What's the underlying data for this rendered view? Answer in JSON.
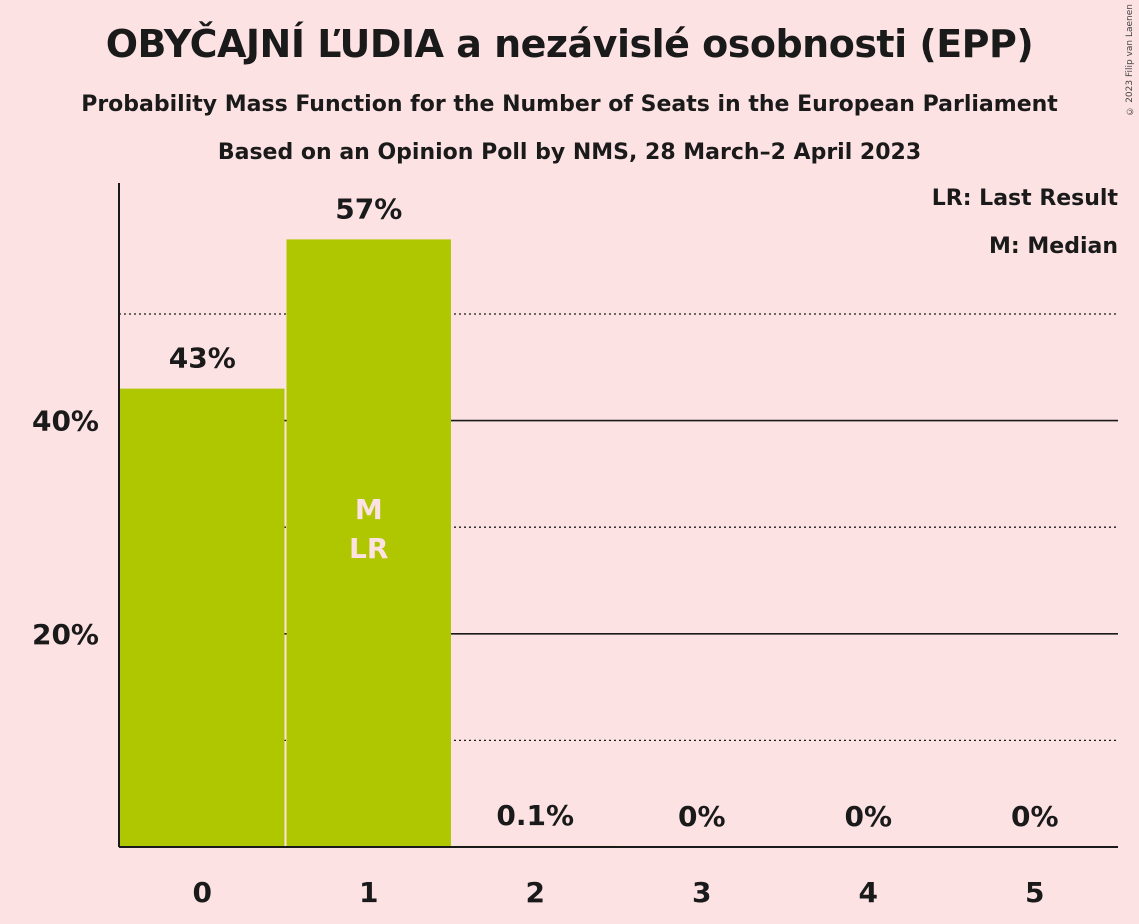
{
  "header": {
    "title": "OBYČAJNÍ ĽUDIA a nezávislé osobnosti (EPP)",
    "subtitle1": "Probability Mass Function for the Number of Seats in the European Parliament",
    "subtitle2": "Based on an Opinion Poll by NMS, 28 March–2 April 2023",
    "copyright": "© 2023 Filip van Laenen"
  },
  "legend": {
    "last_result": "LR: Last Result",
    "median": "M: Median"
  },
  "colors": {
    "background": "#fde2e4",
    "bar": "#afc700",
    "axis": "#1a1a1a",
    "inbar_text": "#fde2e4"
  },
  "chart_data": {
    "type": "bar",
    "categories": [
      "0",
      "1",
      "2",
      "3",
      "4",
      "5"
    ],
    "values": [
      43,
      57,
      0.1,
      0,
      0,
      0
    ],
    "value_labels": [
      "43%",
      "57%",
      "0.1%",
      "0%",
      "0%",
      "0%"
    ],
    "ylim": [
      0,
      62
    ],
    "y_ticks": [
      {
        "value": 20,
        "label": "20%"
      },
      {
        "value": 40,
        "label": "40%"
      }
    ],
    "minor_gridlines": [
      10,
      30,
      50
    ],
    "median_index": 1,
    "last_result_index": 1,
    "median_marker": "M",
    "last_result_marker": "LR"
  }
}
